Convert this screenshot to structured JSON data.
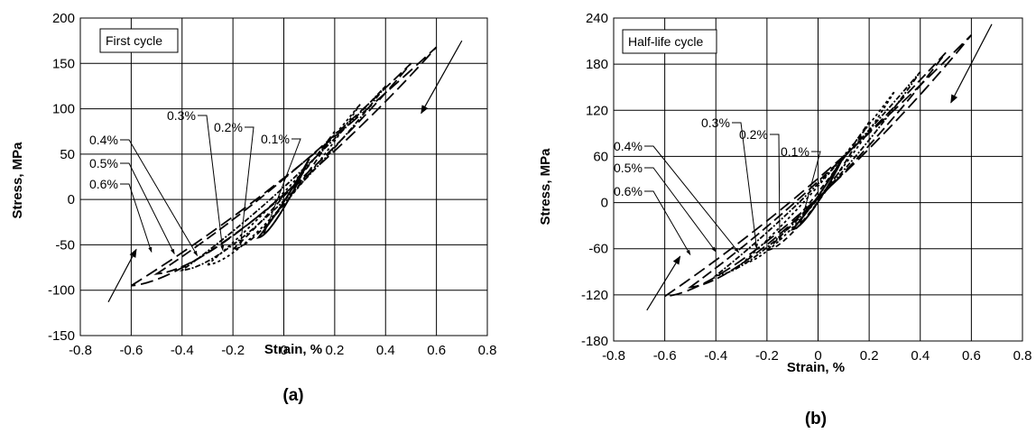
{
  "panels": [
    {
      "caption": "(a)",
      "legend_box": "First cycle",
      "amp_labels": [
        "0.1%",
        "0.2%",
        "0.3%",
        "0.4%",
        "0.5%",
        "0.6%"
      ]
    },
    {
      "caption": "(b)",
      "legend_box": "Half-life cycle",
      "amp_labels": [
        "0.1%",
        "0.2%",
        "0.3%",
        "0.4%",
        "0.5%",
        "0.6%"
      ]
    }
  ],
  "chart_data": [
    {
      "type": "line",
      "title": "First cycle",
      "xlabel": "Strain, %",
      "ylabel": "Stress, MPa",
      "xlim": [
        -0.8,
        0.8
      ],
      "ylim": [
        -150,
        200
      ],
      "xticks": [
        -0.8,
        -0.6,
        -0.4,
        -0.2,
        0,
        0.2,
        0.4,
        0.6,
        0.8
      ],
      "yticks": [
        -150,
        -100,
        -50,
        0,
        50,
        100,
        150,
        200
      ],
      "grid": true,
      "loops": [
        {
          "name": "0.1%",
          "strain_amplitude": 0.1,
          "max_stress": 45,
          "min_stress": -42
        },
        {
          "name": "0.2%",
          "strain_amplitude": 0.2,
          "max_stress": 75,
          "min_stress": -55
        },
        {
          "name": "0.3%",
          "strain_amplitude": 0.3,
          "max_stress": 105,
          "min_stress": -72
        },
        {
          "name": "0.4%",
          "strain_amplitude": 0.4,
          "max_stress": 125,
          "min_stress": -78
        },
        {
          "name": "0.5%",
          "strain_amplitude": 0.5,
          "max_stress": 150,
          "min_stress": -82
        },
        {
          "name": "0.6%",
          "strain_amplitude": 0.6,
          "max_stress": 168,
          "min_stress": -95
        }
      ]
    },
    {
      "type": "line",
      "title": "Half-life cycle",
      "xlabel": "Strain, %",
      "ylabel": "Stress, MPa",
      "xlim": [
        -0.8,
        0.8
      ],
      "ylim": [
        -180,
        240
      ],
      "xticks": [
        -0.8,
        -0.6,
        -0.4,
        -0.2,
        0,
        0.2,
        0.4,
        0.6,
        0.8
      ],
      "yticks": [
        -180,
        -120,
        -60,
        0,
        60,
        120,
        180,
        240
      ],
      "grid": true,
      "loops": [
        {
          "name": "0.1%",
          "strain_amplitude": 0.1,
          "max_stress": 60,
          "min_stress": -35
        },
        {
          "name": "0.2%",
          "strain_amplitude": 0.2,
          "max_stress": 105,
          "min_stress": -62
        },
        {
          "name": "0.3%",
          "strain_amplitude": 0.3,
          "max_stress": 145,
          "min_stress": -80
        },
        {
          "name": "0.4%",
          "strain_amplitude": 0.4,
          "max_stress": 170,
          "min_stress": -95
        },
        {
          "name": "0.5%",
          "strain_amplitude": 0.5,
          "max_stress": 195,
          "min_stress": -110
        },
        {
          "name": "0.6%",
          "strain_amplitude": 0.6,
          "max_stress": 218,
          "min_stress": -122
        }
      ]
    }
  ]
}
